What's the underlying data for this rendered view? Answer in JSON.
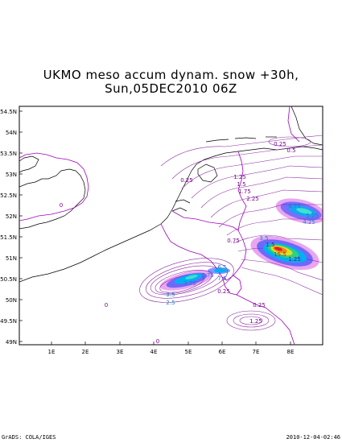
{
  "title": {
    "line1": "UKMO meso accum dynam. snow +30h,",
    "line2": "Sun,05DEC2010 06Z"
  },
  "axes": {
    "lat_ticks": [
      "54.5N",
      "54N",
      "53.5N",
      "53N",
      "52.5N",
      "52N",
      "51.5N",
      "51N",
      "50.5N",
      "50N",
      "49.5N",
      "49N"
    ],
    "lon_ticks": [
      "1E",
      "2E",
      "3E",
      "4E",
      "5E",
      "6E",
      "7E",
      "8E"
    ]
  },
  "contour_labels": [
    {
      "text": "0.25",
      "color": "#7a0090"
    },
    {
      "text": "0.5",
      "color": "#7a0090"
    },
    {
      "text": "0.25",
      "color": "#7a0090"
    },
    {
      "text": "1.25",
      "color": "#7a0090"
    },
    {
      "text": "1.5",
      "color": "#7a0090"
    },
    {
      "text": "1.75",
      "color": "#7a0090"
    },
    {
      "text": "2.25",
      "color": "#7a0090"
    },
    {
      "text": "0.75",
      "color": "#7a0090"
    },
    {
      "text": "0.25",
      "color": "#7a0090"
    },
    {
      "text": "0.25",
      "color": "#7a0090"
    },
    {
      "text": "1.25",
      "color": "#7a0090"
    },
    {
      "text": "0",
      "color": "#7a0090"
    },
    {
      "text": "0",
      "color": "#7a0090"
    },
    {
      "text": "0",
      "color": "#7a0090"
    },
    {
      "text": "6.75",
      "color": "#1e7fd0"
    },
    {
      "text": "5.25",
      "color": "#1e7fd0"
    },
    {
      "text": "4.25",
      "color": "#1e7fd0"
    },
    {
      "text": "3.5",
      "color": "#1e7fd0"
    },
    {
      "text": "1.5",
      "color": "#7a0090"
    },
    {
      "text": "15.5",
      "color": "#d02020"
    },
    {
      "text": "1.25",
      "color": "#7a0090"
    },
    {
      "text": "6.5",
      "color": "#1e7fd0"
    },
    {
      "text": "5.75",
      "color": "#1e7fd0"
    },
    {
      "text": "7.5",
      "color": "#1e7fd0"
    },
    {
      "text": "3.75",
      "color": "#1e7fd0"
    },
    {
      "text": "3.5",
      "color": "#1e7fd0"
    },
    {
      "text": "2.5",
      "color": "#1e7fd0"
    }
  ],
  "footer": {
    "left": "GrADS: COLA/IGES",
    "right": "2010-12-04-02:46"
  },
  "colors": {
    "contour": "#8a2aa0",
    "coast": "#000000",
    "border": "#a000c0"
  }
}
